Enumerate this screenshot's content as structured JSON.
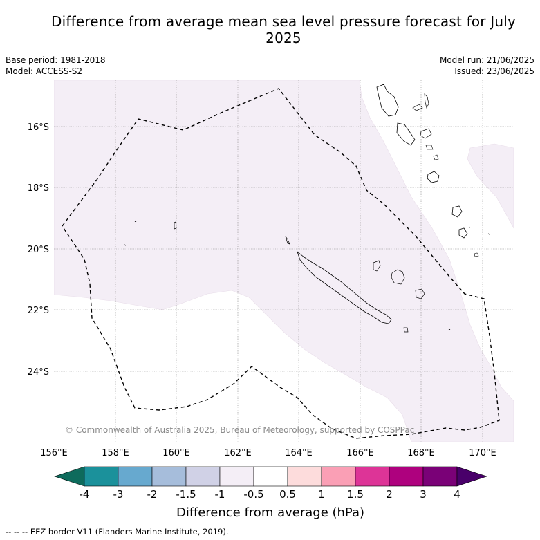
{
  "title": "Difference from average mean sea level pressure forecast for July 2025",
  "meta": {
    "base_period": "Base period: 1981-2018",
    "model": "Model: ACCESS-S2",
    "model_run": "Model run: 21/06/2025",
    "issued": "Issued: 23/06/2025"
  },
  "map": {
    "lat_labels": [
      "16°S",
      "18°S",
      "20°S",
      "22°S",
      "24°S"
    ],
    "lon_labels": [
      "156°E",
      "158°E",
      "160°E",
      "162°E",
      "164°E",
      "166°E",
      "168°E",
      "170°E"
    ],
    "copyright": "© Commonwealth of Australia 2025, Bureau of Meteorology, supported by COSPPac",
    "shaded_category": "-1 to -0.5",
    "colors": {
      "light_purple": "#f4eef6",
      "eez_line": "#000000"
    }
  },
  "colorbar": {
    "tick_labels": [
      "-4",
      "-3",
      "-2",
      "-1.5",
      "-1",
      "-0.5",
      "0.5",
      "1",
      "1.5",
      "2",
      "3",
      "4"
    ],
    "colors": [
      "#0e6b5c",
      "#1b919b",
      "#67a9cf",
      "#a6bddb",
      "#d0d1e6",
      "#f4eef6",
      "#ffffff",
      "#fddcdc",
      "#fa9fb5",
      "#dd3497",
      "#ae017e",
      "#7a0177",
      "#49006a"
    ],
    "label": "Difference from average (hPa)"
  },
  "footer": {
    "eez_note": "--  --  -- EEZ border V11 (Flanders Marine Institute, 2019)."
  }
}
